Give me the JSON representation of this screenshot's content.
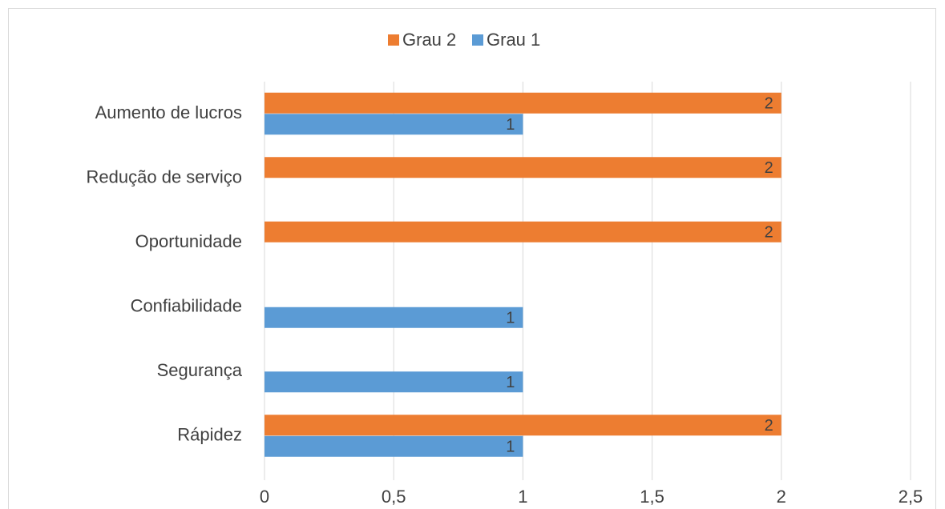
{
  "chart_data": {
    "type": "bar",
    "orientation": "horizontal",
    "categories": [
      "Aumento de lucros",
      "Redução de serviço",
      "Oportunidade",
      "Confiabilidade",
      "Segurança",
      "Rápidez"
    ],
    "series": [
      {
        "name": "Grau 2",
        "color": "#ed7d31",
        "values": [
          2,
          2,
          2,
          null,
          null,
          2
        ]
      },
      {
        "name": "Grau 1",
        "color": "#5b9bd5",
        "values": [
          1,
          null,
          null,
          1,
          1,
          1
        ]
      }
    ],
    "xlim": [
      0,
      2.5
    ],
    "xticks": [
      0,
      {
        "value": 0.5,
        "label": "0,5"
      },
      1,
      {
        "value": 1.5,
        "label": "1,5"
      },
      2,
      {
        "value": 2.5,
        "label": "2,5"
      }
    ],
    "grid": true,
    "legend": "top",
    "data_labels": true
  }
}
